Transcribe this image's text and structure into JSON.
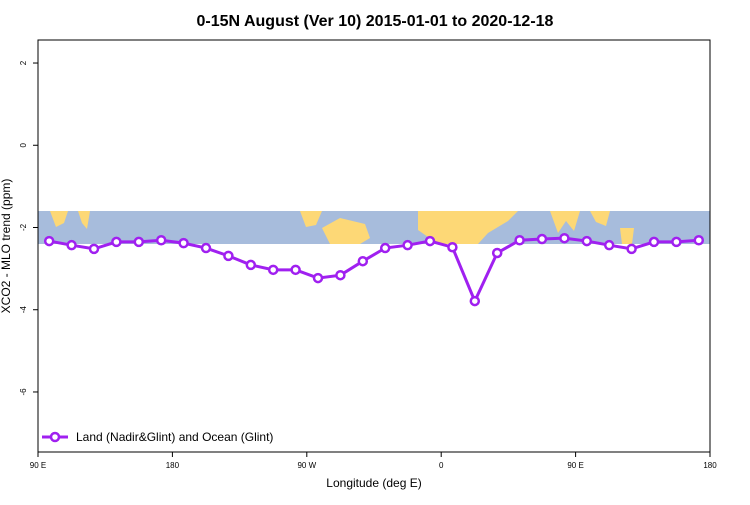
{
  "chart_data": {
    "type": "line",
    "title": "0-15N August (Ver 10)   2015-01-01 to 2020-12-18",
    "x_label": "Longitude (deg E)",
    "y_label": "XCO2 - MLO trend (ppm)",
    "x": [
      97.5,
      112.5,
      127.5,
      142.5,
      157.5,
      172.5,
      187.5,
      202.5,
      217.5,
      232.5,
      247.5,
      262.5,
      277.5,
      292.5,
      307.5,
      322.5,
      337.5,
      352.5,
      367.5,
      382.5,
      397.5,
      412.5,
      427.5,
      442.5,
      457.5,
      472.5,
      487.5,
      502.5,
      517.5,
      532.5
    ],
    "series": [
      {
        "name": "Land (Nadir&Glint) and Ocean (Glint)",
        "color": "#a020f0",
        "values": [
          -2.33,
          -2.43,
          -2.52,
          -2.35,
          -2.35,
          -2.31,
          -2.38,
          -2.5,
          -2.69,
          -2.91,
          -3.03,
          -3.03,
          -3.23,
          -3.16,
          -2.82,
          -2.5,
          -2.43,
          -2.33,
          -2.48,
          -3.79,
          -2.62,
          -2.31,
          -2.28,
          -2.26,
          -2.33,
          -2.43,
          -2.52,
          -2.35,
          -2.35,
          -2.31
        ]
      }
    ],
    "xlim": [
      90,
      540
    ],
    "xticks": [
      {
        "value": 90,
        "label": "90 E"
      },
      {
        "value": 180,
        "label": "180"
      },
      {
        "value": 270,
        "label": "90 W"
      },
      {
        "value": 360,
        "label": "0"
      },
      {
        "value": 450,
        "label": "90 E"
      },
      {
        "value": 540,
        "label": "180"
      }
    ],
    "ylim": [
      -7.46,
      2.56
    ],
    "yticks": [
      -6,
      -4,
      -2,
      0,
      2
    ],
    "legend": "bottom-left"
  }
}
